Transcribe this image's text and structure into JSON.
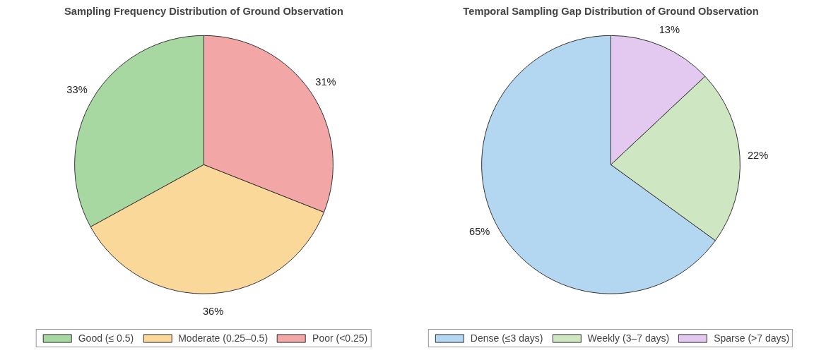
{
  "chart_data": [
    {
      "type": "pie",
      "title": "Sampling Frequency Distribution of Ground Observation",
      "categories": [
        "Good (≤ 0.5)",
        "Moderate (0.25–0.5)",
        "Poor (<0.25)"
      ],
      "values": [
        33,
        36,
        31
      ],
      "colors": [
        "#a8d8a2",
        "#fad89a",
        "#f2a6a6"
      ],
      "value_labels": [
        "33%",
        "36%",
        "31%"
      ],
      "legend": "bottom"
    },
    {
      "type": "pie",
      "title": "Temporal Sampling Gap Distribution of Ground Observation",
      "categories": [
        "Dense (≤3 days)",
        "Weekly (3–7 days)",
        "Sparse (>7 days)"
      ],
      "values": [
        65,
        22,
        13
      ],
      "colors": [
        "#b3d7f0",
        "#cfe6c2",
        "#e3c8f0"
      ],
      "value_labels": [
        "65%",
        "22%",
        "13%"
      ],
      "legend": "bottom"
    }
  ]
}
